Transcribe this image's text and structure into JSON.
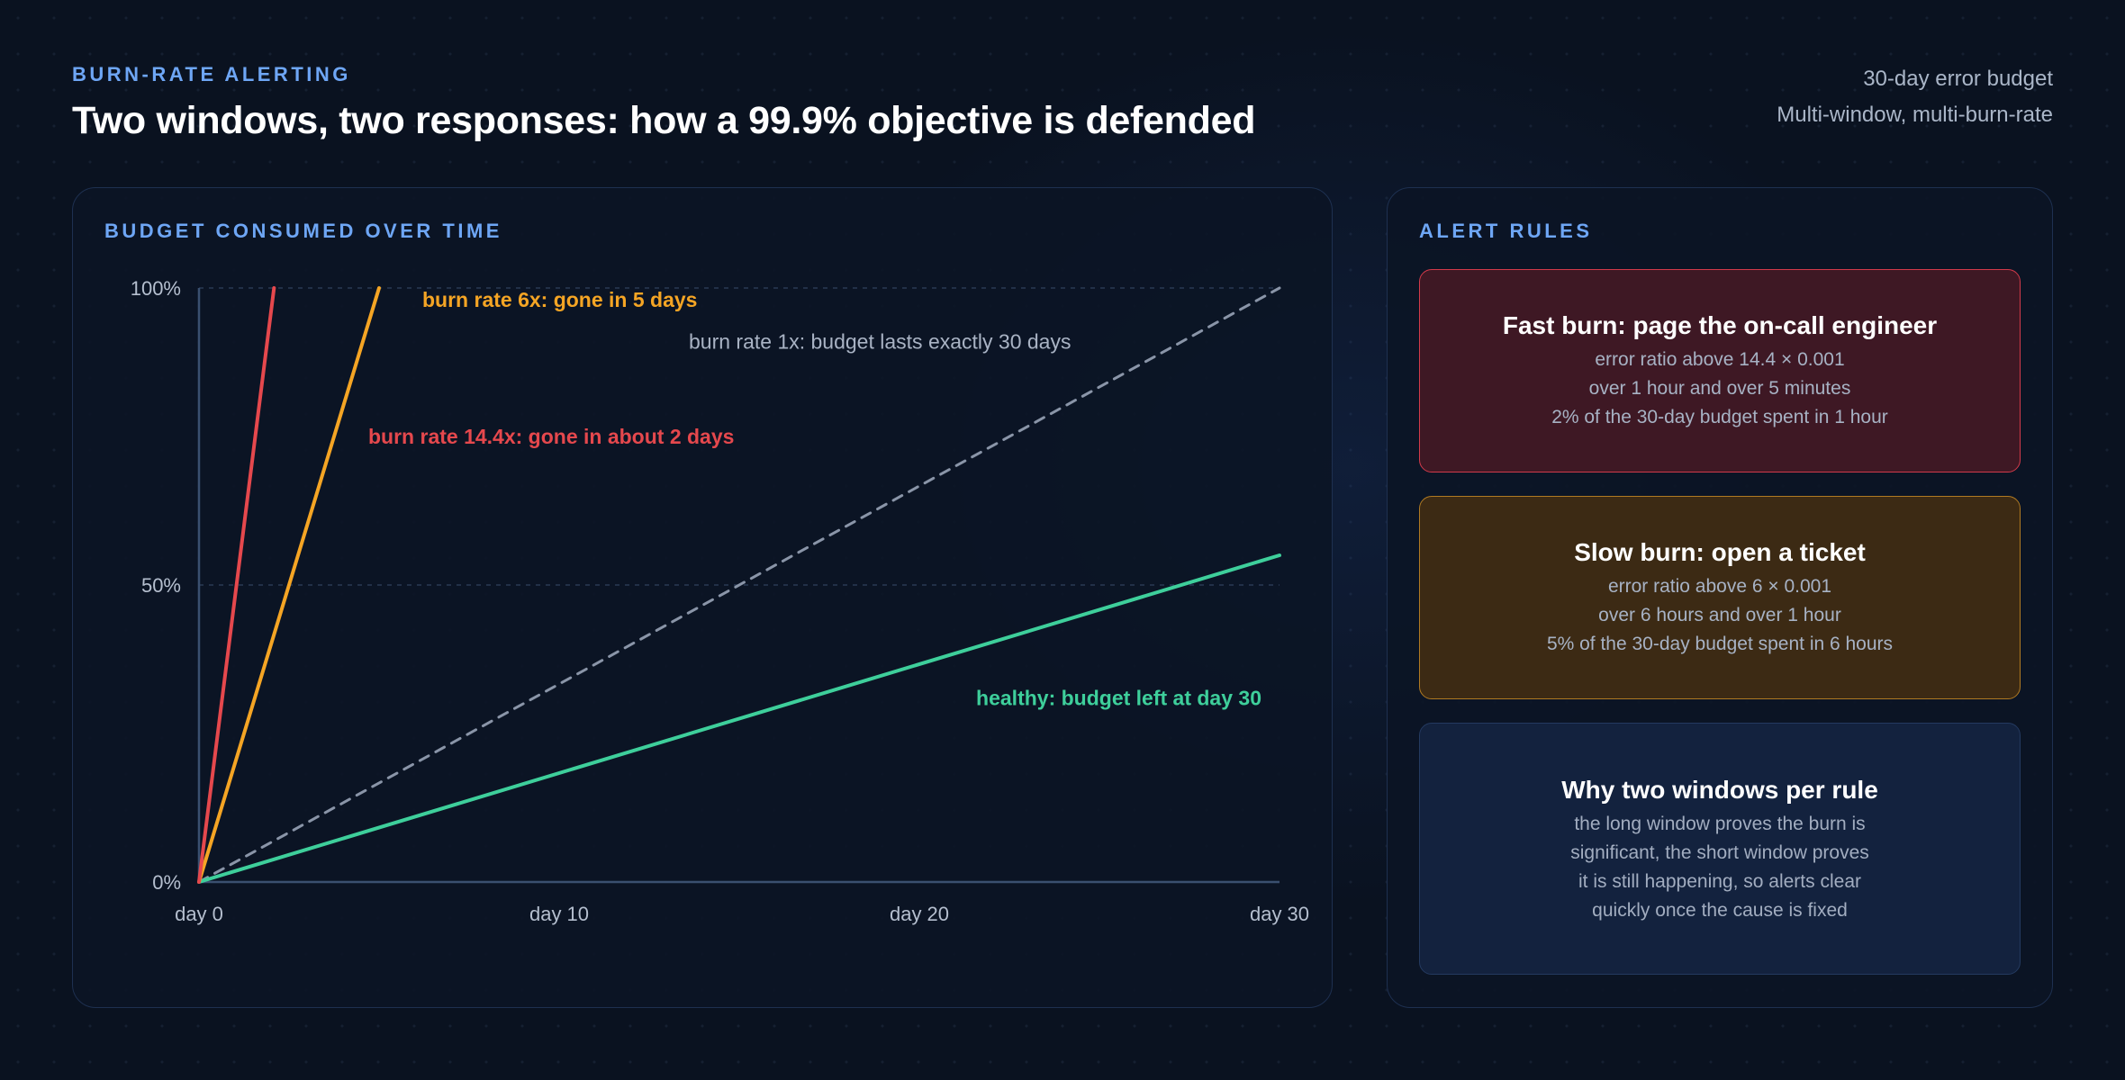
{
  "header": {
    "eyebrow": "BURN-RATE ALERTING",
    "title": "Two windows, two responses: how a 99.9% objective is defended",
    "meta_line1": "30-day error budget",
    "meta_line2": "Multi-window, multi-burn-rate"
  },
  "chart_panel": {
    "heading": "BUDGET CONSUMED OVER TIME"
  },
  "rules_panel": {
    "heading": "ALERT RULES",
    "cards": [
      {
        "title": "Fast burn: page the on-call engineer",
        "lines": [
          "error ratio above 14.4 × 0.001",
          "over 1 hour and over 5 minutes",
          "2% of the 30-day budget spent in 1 hour"
        ]
      },
      {
        "title": "Slow burn: open a ticket",
        "lines": [
          "error ratio above 6 × 0.001",
          "over 6 hours and over 1 hour",
          "5% of the 30-day budget spent in 6 hours"
        ]
      },
      {
        "title": "Why two windows per rule",
        "lines": [
          "the long window proves the burn is",
          "significant, the short window proves",
          "it is still happening, so alerts clear",
          "quickly once the cause is fixed"
        ]
      }
    ]
  },
  "colors": {
    "fast": "#e5484d",
    "slow": "#f5a524",
    "baseline": "#8a95a8",
    "healthy": "#3ecf9b",
    "axis": "#3a5070",
    "grid": "#2a3a55",
    "tick": "#b5bfcf"
  },
  "chart_data": {
    "type": "line",
    "xlim": [
      0,
      30
    ],
    "ylim": [
      0,
      100
    ],
    "x_ticks": [
      0,
      10,
      20,
      30
    ],
    "x_tick_labels": [
      "day 0",
      "day 10",
      "day 20",
      "day 30"
    ],
    "y_ticks": [
      0,
      50,
      100
    ],
    "y_tick_labels": [
      "0%",
      "50%",
      "100%"
    ],
    "grid": true,
    "series": [
      {
        "key": "fast",
        "x": [
          0,
          2.083
        ],
        "y": [
          0,
          100
        ],
        "style": "solid",
        "label": "burn rate 14.4x: gone in about 2 days",
        "label_x": 4.7,
        "label_y": 75
      },
      {
        "key": "slow",
        "x": [
          0,
          5
        ],
        "y": [
          0,
          100
        ],
        "style": "solid",
        "label": "burn rate 6x: gone in 5 days",
        "label_x": 6.2,
        "label_y": 98
      },
      {
        "key": "baseline",
        "x": [
          0,
          30
        ],
        "y": [
          0,
          100
        ],
        "style": "dashed",
        "label": "burn rate 1x: budget lasts exactly 30 days",
        "label_x": 13.6,
        "label_y": 91
      },
      {
        "key": "healthy",
        "x": [
          0,
          30
        ],
        "y": [
          0,
          55
        ],
        "style": "solid",
        "label": "healthy: budget left at day 30",
        "label_x": 29.5,
        "label_y": 31,
        "label_anchor": "end"
      }
    ]
  }
}
